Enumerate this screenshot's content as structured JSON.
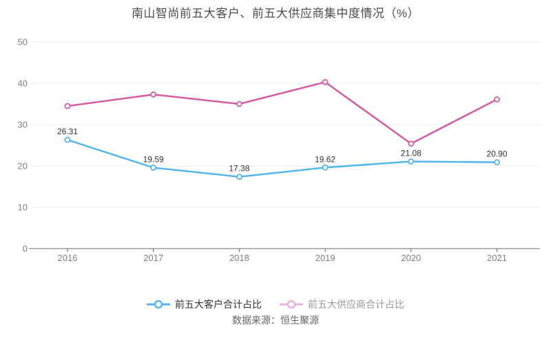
{
  "page": {
    "title": "南山智尚前五大客户、前五大供应商集中度情况（%）",
    "source_note": "数据来源：恒生聚源"
  },
  "chart_data": {
    "type": "line",
    "title": "南山智尚前五大客户、前五大供应商集中度情况（%）",
    "categories": [
      "2016",
      "2017",
      "2018",
      "2019",
      "2020",
      "2021"
    ],
    "series": [
      {
        "name": "前五大客户合计占比",
        "color": "#54b5ec",
        "values": [
          26.31,
          19.59,
          17.38,
          19.62,
          21.08,
          20.9
        ],
        "labels": [
          "26.31",
          "19.59",
          "17.38",
          "19.62",
          "21.08",
          "20.90"
        ],
        "show_labels": true,
        "legend_marker_color": "#54b5ec",
        "legend_text_color": "#333333"
      },
      {
        "name": "前五大供应商合计占比",
        "color": "#d65a9e",
        "values": [
          34.5,
          37.3,
          35.0,
          40.3,
          25.4,
          36.1
        ],
        "labels": [],
        "show_labels": false,
        "legend_marker_color": "#f0aed6",
        "legend_text_color": "#999999"
      }
    ],
    "xlabel": "",
    "ylabel": "",
    "ylim": [
      0,
      50
    ],
    "yticks": [
      0,
      10,
      20,
      30,
      40,
      50
    ],
    "grid": true,
    "legend_position": "bottom",
    "marker": "hollow-circle",
    "source": "数据来源：恒生聚源"
  }
}
